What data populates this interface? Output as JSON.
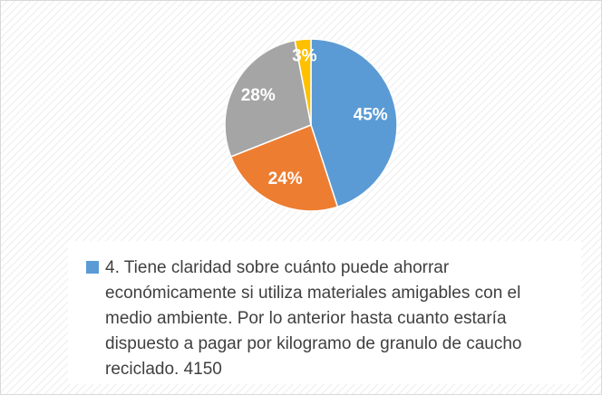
{
  "chart_data": {
    "type": "pie",
    "categories": [
      null,
      null,
      null,
      null
    ],
    "series": [
      {
        "name": "4. Tiene claridad sobre cuánto puede ahorrar económicamente si utiliza materiales amigables con el medio ambiente. Por lo anterior hasta cuanto estaría dispuesto a pagar por kilogramo de granulo de caucho reciclado.   4150",
        "values": [
          45,
          24,
          28,
          3
        ],
        "value_labels": [
          "45%",
          "24%",
          "28%",
          "3%"
        ],
        "colors": [
          "#5b9bd5",
          "#ed7d31",
          "#a5a5a5",
          "#ffc000"
        ]
      }
    ]
  }
}
